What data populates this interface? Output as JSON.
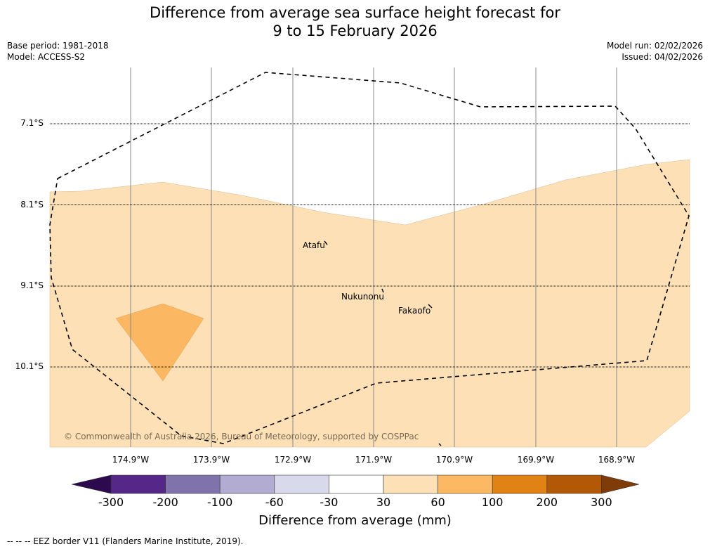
{
  "title_line1": "Difference from average sea surface height forecast for",
  "title_line2": "9 to 15 February 2026",
  "base_period": "Base period: 1981-2018",
  "model": "Model: ACCESS-S2",
  "model_run": "Model run: 02/02/2026",
  "issued": "Issued: 04/02/2026",
  "latitudes": [
    "7.1°S",
    "8.1°S",
    "9.1°S",
    "10.1°S"
  ],
  "longitudes": [
    "174.9°W",
    "173.9°W",
    "172.9°W",
    "171.9°W",
    "170.9°W",
    "169.9°W",
    "168.9°W"
  ],
  "places": [
    "Atafu",
    "Nukunonu",
    "Fakaofo"
  ],
  "copyright": "© Commonwealth of Australia 2026, Bureau of Meteorology, supported by COSPPac",
  "colorbar": {
    "title": "Difference from average (mm)",
    "ticks": [
      "-300",
      "-200",
      "-100",
      "-60",
      "-30",
      "30",
      "60",
      "100",
      "200",
      "300"
    ],
    "colors": [
      "#2d0a4e",
      "#542788",
      "#8073ac",
      "#b2abd2",
      "#d8daeb",
      "#ffffff",
      "#fee0b6",
      "#fdb863",
      "#e08214",
      "#b35806",
      "#7f3b08"
    ]
  },
  "footnote": "--  --  -- EEZ border V11 (Flanders Marine Institute, 2019)."
}
